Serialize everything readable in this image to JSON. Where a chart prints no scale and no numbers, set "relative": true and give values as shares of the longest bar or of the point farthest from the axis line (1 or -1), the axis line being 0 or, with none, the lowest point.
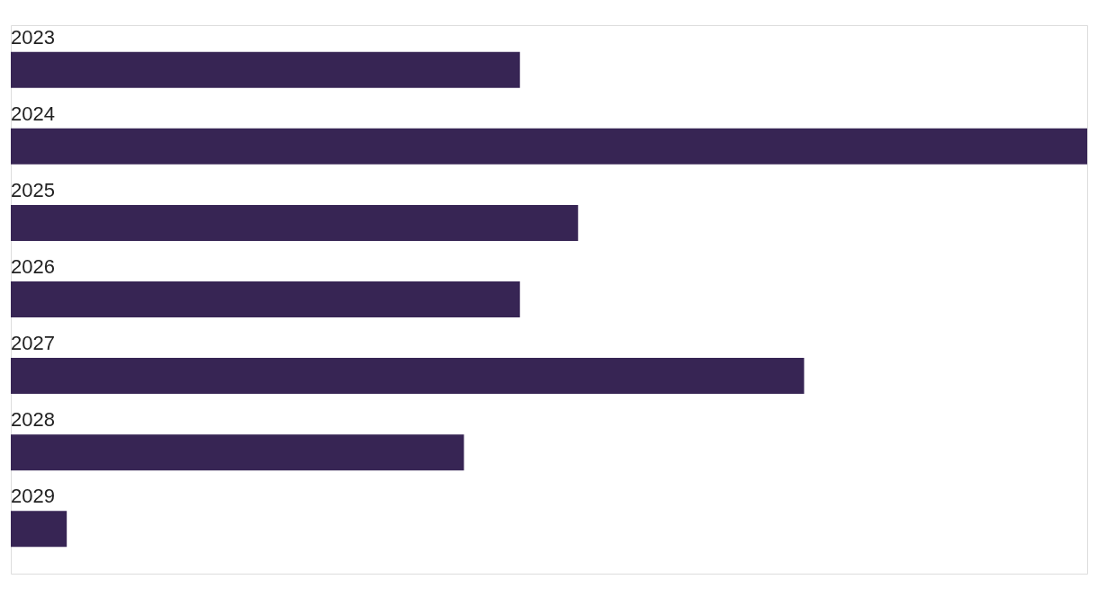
{
  "chart_data": {
    "type": "bar",
    "orientation": "horizontal",
    "relative": true,
    "categories": [
      "2023",
      "2024",
      "2025",
      "2026",
      "2027",
      "2028",
      "2029"
    ],
    "values": [
      0.473,
      1,
      0.527,
      0.473,
      0.737,
      0.421,
      0.052
    ],
    "color": "#372554"
  }
}
